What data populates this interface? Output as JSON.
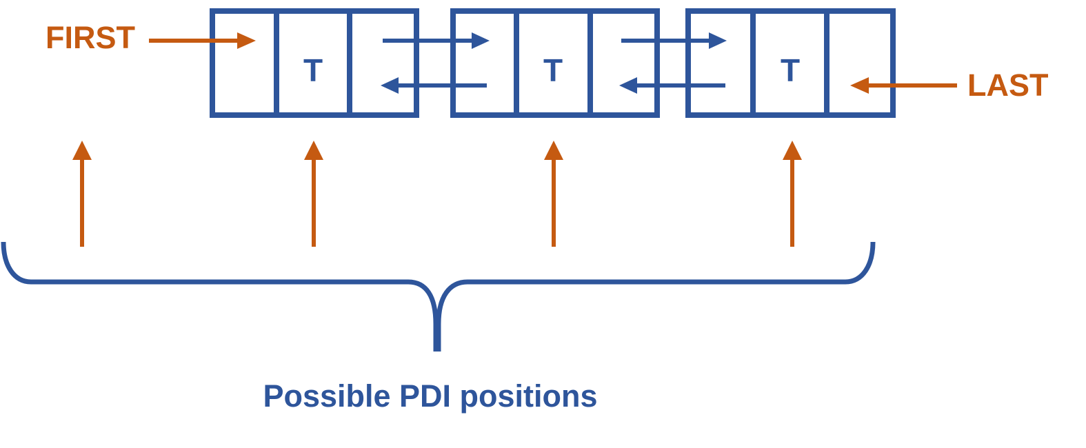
{
  "colors": {
    "node_blue": "#2E559B",
    "pointer_orange": "#C55A11",
    "background": "#FFFFFF"
  },
  "labels": {
    "first": "FIRST",
    "last": "LAST",
    "caption": "Possible PDI positions"
  },
  "nodes": [
    {
      "cell_text": "T"
    },
    {
      "cell_text": "T"
    },
    {
      "cell_text": "T"
    }
  ]
}
